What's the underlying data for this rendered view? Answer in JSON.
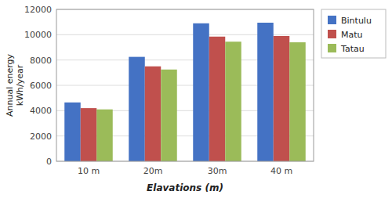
{
  "chart_data": {
    "type": "bar",
    "categories": [
      "10 m",
      "20m",
      "30m",
      "40 m"
    ],
    "series": [
      {
        "name": "Bintulu",
        "color": "#4472C4",
        "values": [
          4650,
          8250,
          10900,
          10950
        ]
      },
      {
        "name": "Matu",
        "color": "#C0504D",
        "values": [
          4200,
          7500,
          9850,
          9900
        ]
      },
      {
        "name": "Tatau",
        "color": "#9BBB59",
        "values": [
          4100,
          7250,
          9450,
          9400
        ]
      }
    ],
    "ylabel": "Annual energy\nkWh/year",
    "xlabel": "Elavations  (m)",
    "ylim": [
      0,
      12000
    ],
    "yticks": [
      0,
      2000,
      4000,
      6000,
      8000,
      10000,
      12000
    ],
    "grid": true,
    "legend": "right"
  }
}
